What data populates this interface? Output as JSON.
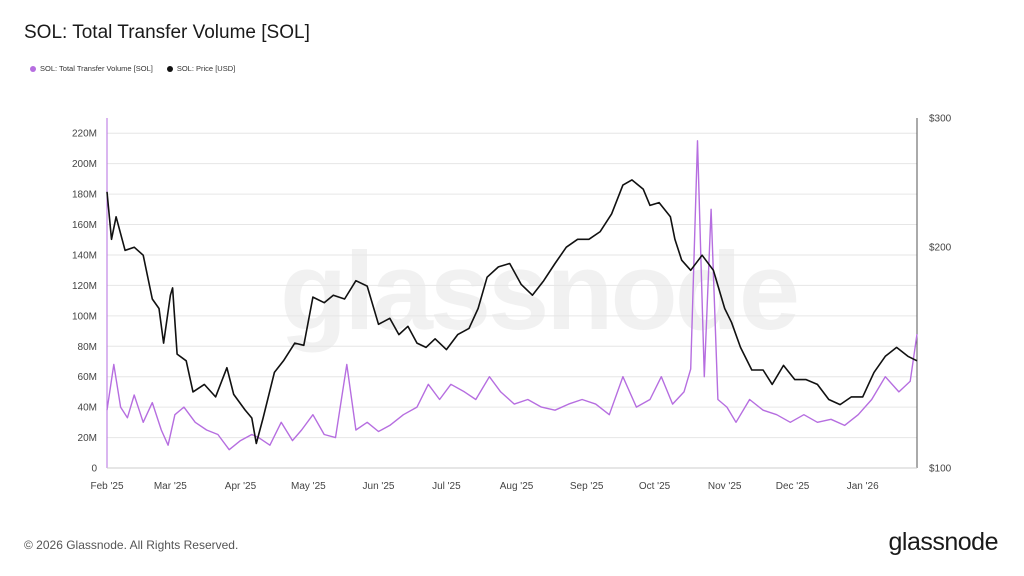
{
  "header": {
    "title": "SOL: Total Transfer Volume [SOL]"
  },
  "footer": {
    "copyright": "© 2026 Glassnode. All Rights Reserved.",
    "logo": "glassnode",
    "watermark": "glassnode"
  },
  "colors": {
    "volume": "#b66ee0",
    "price": "#111111",
    "grid": "#e6e6e6"
  },
  "chart_data": {
    "type": "line",
    "title": "SOL: Total Transfer Volume [SOL]",
    "legend_placement": "top-left",
    "grid": true,
    "x_range": [
      "2025-02-01",
      "2026-01-25"
    ],
    "x_ticks": [
      "Feb '25",
      "Mar '25",
      "Apr '25",
      "May '25",
      "Jun '25",
      "Jul '25",
      "Aug '25",
      "Sep '25",
      "Oct '25",
      "Nov '25",
      "Dec '25",
      "Jan '26"
    ],
    "y_left": {
      "ylim": [
        0,
        230000000
      ],
      "ticks": [
        "0",
        "20M",
        "40M",
        "60M",
        "80M",
        "100M",
        "120M",
        "140M",
        "160M",
        "180M",
        "200M",
        "220M"
      ]
    },
    "y_right": {
      "scale": "log",
      "ylim": [
        100,
        300
      ],
      "ticks": [
        "$100",
        "$200",
        "$300"
      ]
    },
    "series": [
      {
        "name": "SOL: Total Transfer Volume [SOL]",
        "axis": "left",
        "x": [
          "2025-02-01",
          "2025-02-04",
          "2025-02-07",
          "2025-02-10",
          "2025-02-13",
          "2025-02-17",
          "2025-02-21",
          "2025-02-25",
          "2025-02-28",
          "2025-03-03",
          "2025-03-07",
          "2025-03-12",
          "2025-03-17",
          "2025-03-22",
          "2025-03-27",
          "2025-04-01",
          "2025-04-06",
          "2025-04-09",
          "2025-04-14",
          "2025-04-19",
          "2025-04-24",
          "2025-04-28",
          "2025-05-03",
          "2025-05-08",
          "2025-05-13",
          "2025-05-18",
          "2025-05-22",
          "2025-05-27",
          "2025-06-01",
          "2025-06-06",
          "2025-06-12",
          "2025-06-18",
          "2025-06-23",
          "2025-06-28",
          "2025-07-03",
          "2025-07-09",
          "2025-07-14",
          "2025-07-20",
          "2025-07-25",
          "2025-07-31",
          "2025-08-06",
          "2025-08-12",
          "2025-08-18",
          "2025-08-24",
          "2025-08-30",
          "2025-09-05",
          "2025-09-11",
          "2025-09-17",
          "2025-09-23",
          "2025-09-29",
          "2025-10-04",
          "2025-10-09",
          "2025-10-14",
          "2025-10-17",
          "2025-10-20",
          "2025-10-23",
          "2025-10-26",
          "2025-10-29",
          "2025-11-02",
          "2025-11-06",
          "2025-11-12",
          "2025-11-18",
          "2025-11-24",
          "2025-11-30",
          "2025-12-06",
          "2025-12-12",
          "2025-12-18",
          "2025-12-24",
          "2025-12-30",
          "2026-01-05",
          "2026-01-11",
          "2026-01-17",
          "2026-01-22",
          "2026-01-25"
        ],
        "values": [
          38000000,
          68000000,
          40000000,
          33000000,
          48000000,
          30000000,
          43000000,
          25000000,
          15000000,
          35000000,
          40000000,
          30000000,
          25000000,
          22000000,
          12000000,
          18000000,
          22000000,
          20000000,
          15000000,
          30000000,
          18000000,
          25000000,
          35000000,
          22000000,
          20000000,
          68000000,
          25000000,
          30000000,
          24000000,
          28000000,
          35000000,
          40000000,
          55000000,
          45000000,
          55000000,
          50000000,
          45000000,
          60000000,
          50000000,
          42000000,
          45000000,
          40000000,
          38000000,
          42000000,
          45000000,
          42000000,
          35000000,
          60000000,
          40000000,
          45000000,
          60000000,
          42000000,
          50000000,
          65000000,
          215000000,
          60000000,
          170000000,
          45000000,
          40000000,
          30000000,
          45000000,
          38000000,
          35000000,
          30000000,
          35000000,
          30000000,
          32000000,
          28000000,
          35000000,
          45000000,
          60000000,
          50000000,
          57000000,
          88000000
        ]
      },
      {
        "name": "SOL: Price [USD]",
        "axis": "right",
        "x": [
          "2025-02-01",
          "2025-02-03",
          "2025-02-05",
          "2025-02-09",
          "2025-02-13",
          "2025-02-17",
          "2025-02-21",
          "2025-02-24",
          "2025-02-26",
          "2025-03-01",
          "2025-03-02",
          "2025-03-04",
          "2025-03-08",
          "2025-03-11",
          "2025-03-16",
          "2025-03-21",
          "2025-03-26",
          "2025-03-29",
          "2025-04-03",
          "2025-04-06",
          "2025-04-08",
          "2025-04-11",
          "2025-04-16",
          "2025-04-20",
          "2025-04-25",
          "2025-04-29",
          "2025-05-03",
          "2025-05-08",
          "2025-05-12",
          "2025-05-17",
          "2025-05-22",
          "2025-05-27",
          "2025-06-01",
          "2025-06-06",
          "2025-06-10",
          "2025-06-14",
          "2025-06-18",
          "2025-06-22",
          "2025-06-26",
          "2025-07-01",
          "2025-07-06",
          "2025-07-11",
          "2025-07-15",
          "2025-07-19",
          "2025-07-24",
          "2025-07-29",
          "2025-08-03",
          "2025-08-08",
          "2025-08-13",
          "2025-08-18",
          "2025-08-23",
          "2025-08-28",
          "2025-09-02",
          "2025-09-07",
          "2025-09-12",
          "2025-09-17",
          "2025-09-21",
          "2025-09-26",
          "2025-09-29",
          "2025-10-03",
          "2025-10-08",
          "2025-10-10",
          "2025-10-13",
          "2025-10-17",
          "2025-10-22",
          "2025-10-27",
          "2025-11-01",
          "2025-11-04",
          "2025-11-08",
          "2025-11-13",
          "2025-11-18",
          "2025-11-22",
          "2025-11-27",
          "2025-12-02",
          "2025-12-07",
          "2025-12-12",
          "2025-12-17",
          "2025-12-22",
          "2025-12-27",
          "2026-01-01",
          "2026-01-06",
          "2026-01-11",
          "2026-01-16",
          "2026-01-21",
          "2026-01-25"
        ],
        "values": [
          238,
          205,
          220,
          198,
          200,
          195,
          170,
          165,
          148,
          172,
          176,
          143,
          140,
          127,
          130,
          125,
          137,
          126,
          120,
          117,
          108,
          117,
          135,
          140,
          148,
          147,
          171,
          168,
          172,
          170,
          180,
          177,
          157,
          160,
          152,
          156,
          148,
          146,
          150,
          145,
          152,
          155,
          165,
          182,
          188,
          190,
          178,
          172,
          180,
          190,
          200,
          205,
          205,
          210,
          222,
          243,
          247,
          240,
          228,
          230,
          220,
          205,
          192,
          186,
          195,
          186,
          165,
          158,
          146,
          136,
          136,
          130,
          138,
          132,
          132,
          130,
          124,
          122,
          125,
          125,
          135,
          142,
          146,
          142,
          140
        ]
      }
    ]
  }
}
